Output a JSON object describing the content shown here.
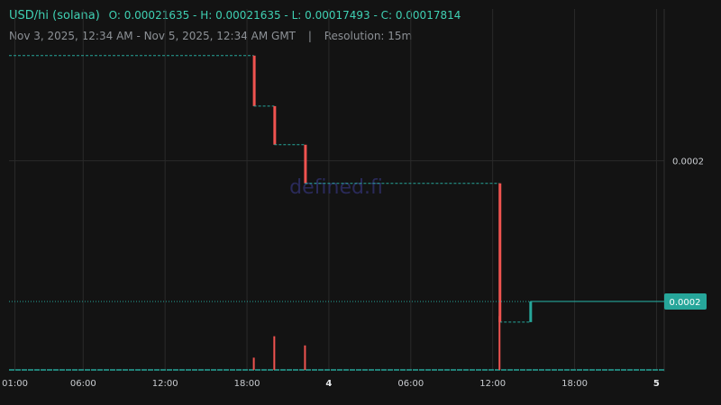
{
  "header": {
    "pair": "USD/hi (solana)",
    "ohlc": "O: 0.00021635 - H: 0.00021635 - L: 0.00017493 - C: 0.00017814",
    "range": "Nov 3, 2025, 12:34 AM - Nov 5, 2025, 12:34 AM GMT",
    "separator": "|",
    "resolution": "Resolution: 15m"
  },
  "watermark": "defined.fi",
  "colors": {
    "background": "#131313",
    "grid": "#2a2a2a",
    "up": "#26a69a",
    "down": "#ef5350",
    "last_price_bg": "#26a69a"
  },
  "chart_data": {
    "type": "candlestick",
    "price_axis": {
      "labels": [
        "0.0002"
      ],
      "last_price": "0.0002"
    },
    "x_ticks": [
      "01:00",
      "06:00",
      "12:00",
      "18:00",
      "4",
      "06:00",
      "12:00",
      "18:00",
      "5"
    ],
    "price_range": [
      0.0001675,
      0.000218
    ],
    "steps": [
      {
        "time": "Nov 3 18:30",
        "from": 0.00021635,
        "to": 0.0002085,
        "direction": "down"
      },
      {
        "time": "Nov 3 20:00",
        "from": 0.0002085,
        "to": 0.0002025,
        "direction": "down"
      },
      {
        "time": "Nov 3 22:15",
        "from": 0.0002025,
        "to": 0.0001965,
        "direction": "down"
      },
      {
        "time": "Nov 4 12:30",
        "from": 0.0001965,
        "to": 0.00017493,
        "direction": "down"
      },
      {
        "time": "Nov 4 14:45",
        "from": 0.00017493,
        "to": 0.00017814,
        "direction": "up"
      }
    ],
    "volume_spikes": [
      {
        "time": "Nov 3 18:30",
        "relative": 0.2
      },
      {
        "time": "Nov 3 20:00",
        "relative": 0.55
      },
      {
        "time": "Nov 3 22:15",
        "relative": 0.4
      },
      {
        "time": "Nov 4 12:30",
        "relative": 0.88
      }
    ]
  }
}
